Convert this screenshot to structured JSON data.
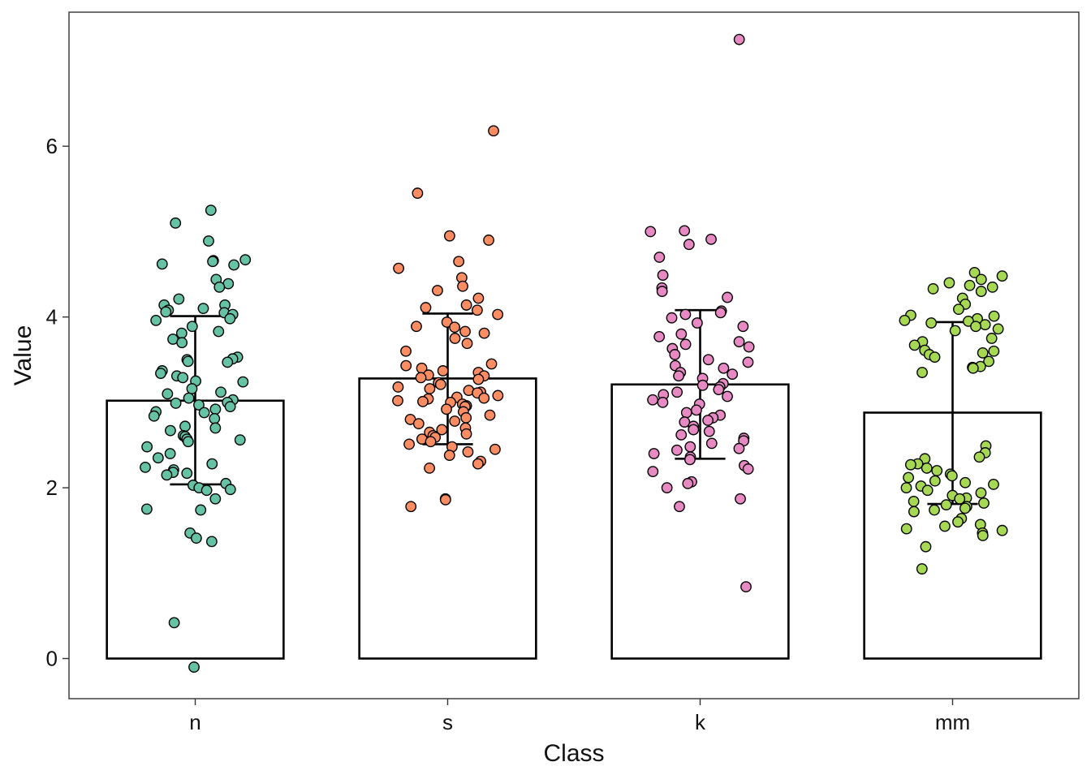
{
  "chart_data": {
    "type": "bar",
    "title": "",
    "xlabel": "Class",
    "ylabel": "Value",
    "categories": [
      "n",
      "s",
      "k",
      "mm"
    ],
    "values": [
      3.02,
      3.28,
      3.21,
      2.88
    ],
    "error_bars": [
      {
        "low": 2.04,
        "high": 4.01
      },
      {
        "low": 2.51,
        "high": 4.04
      },
      {
        "low": 2.34,
        "high": 4.08
      },
      {
        "low": 1.81,
        "high": 3.94
      }
    ],
    "ylim": [
      -0.47,
      7.57
    ],
    "yticks": [
      0,
      2,
      4,
      6
    ],
    "grid": false,
    "legend": "none",
    "bar_fill": "#ffffff",
    "bar_outline": "#000000",
    "point_colors": [
      "#66c2a5",
      "#fc8d62",
      "#e78ac3",
      "#a6d854"
    ],
    "points": [
      {
        "category": "n",
        "values": [
          5.25,
          5.1,
          4.89,
          4.67,
          4.66,
          4.65,
          4.62,
          4.61,
          4.44,
          4.39,
          4.35,
          4.21,
          4.14,
          4.14,
          4.1,
          4.08,
          4.06,
          4.05,
          4.03,
          3.98,
          3.96,
          3.89,
          3.83,
          3.81,
          3.74,
          3.7,
          3.53,
          3.51,
          3.5,
          3.48,
          3.47,
          3.37,
          3.34,
          3.31,
          3.29,
          3.25,
          3.24,
          3.16,
          3.12,
          3.1,
          3.05,
          3.03,
          3.0,
          2.99,
          2.97,
          2.95,
          2.92,
          2.89,
          2.88,
          2.84,
          2.81,
          2.72,
          2.7,
          2.67,
          2.61,
          2.6,
          2.57,
          2.56,
          2.54,
          2.48,
          2.4,
          2.35,
          2.28,
          2.24,
          2.21,
          2.18,
          2.17,
          2.15,
          2.05,
          2.03,
          2.0,
          1.98,
          1.97,
          1.87,
          1.75,
          1.74,
          1.47,
          1.41,
          1.37,
          0.42,
          -0.1
        ]
      },
      {
        "category": "s",
        "values": [
          6.18,
          5.45,
          4.95,
          4.9,
          4.65,
          4.57,
          4.46,
          4.36,
          4.31,
          4.22,
          4.14,
          4.11,
          4.08,
          4.03,
          3.94,
          3.89,
          3.88,
          3.83,
          3.81,
          3.75,
          3.69,
          3.6,
          3.45,
          3.43,
          3.4,
          3.37,
          3.35,
          3.32,
          3.31,
          3.29,
          3.27,
          3.23,
          3.21,
          3.18,
          3.16,
          3.14,
          3.12,
          3.11,
          3.08,
          3.06,
          3.05,
          3.04,
          3.02,
          3.01,
          3.0,
          2.98,
          2.96,
          2.95,
          2.92,
          2.89,
          2.85,
          2.82,
          2.8,
          2.78,
          2.75,
          2.7,
          2.68,
          2.65,
          2.63,
          2.61,
          2.59,
          2.57,
          2.54,
          2.51,
          2.48,
          2.45,
          2.42,
          2.38,
          2.31,
          2.28,
          2.23,
          1.87,
          1.86,
          1.78
        ]
      },
      {
        "category": "k",
        "values": [
          7.25,
          5.01,
          5.0,
          4.91,
          4.85,
          4.7,
          4.49,
          4.34,
          4.3,
          4.23,
          4.07,
          4.05,
          4.03,
          3.99,
          3.93,
          3.89,
          3.8,
          3.77,
          3.71,
          3.68,
          3.65,
          3.63,
          3.56,
          3.5,
          3.47,
          3.43,
          3.4,
          3.35,
          3.33,
          3.31,
          3.28,
          3.22,
          3.2,
          3.18,
          3.15,
          3.12,
          3.09,
          3.07,
          3.03,
          3.0,
          2.98,
          2.91,
          2.88,
          2.85,
          2.82,
          2.79,
          2.77,
          2.72,
          2.68,
          2.66,
          2.62,
          2.58,
          2.55,
          2.52,
          2.48,
          2.46,
          2.44,
          2.4,
          2.36,
          2.33,
          2.26,
          2.22,
          2.19,
          2.07,
          2.05,
          2.0,
          1.87,
          1.78,
          0.84
        ]
      },
      {
        "category": "mm",
        "values": [
          4.52,
          4.48,
          4.44,
          4.4,
          4.37,
          4.35,
          4.33,
          4.3,
          4.22,
          4.15,
          4.09,
          4.02,
          4.01,
          3.98,
          3.96,
          3.95,
          3.93,
          3.91,
          3.89,
          3.86,
          3.84,
          3.75,
          3.71,
          3.67,
          3.61,
          3.6,
          3.58,
          3.56,
          3.53,
          3.48,
          3.42,
          3.41,
          3.4,
          3.35,
          2.49,
          2.41,
          2.36,
          2.34,
          2.28,
          2.27,
          2.23,
          2.2,
          2.16,
          2.14,
          2.12,
          2.08,
          2.06,
          2.04,
          2.02,
          2.0,
          1.97,
          1.94,
          1.91,
          1.88,
          1.87,
          1.84,
          1.82,
          1.8,
          1.78,
          1.76,
          1.74,
          1.72,
          1.64,
          1.6,
          1.57,
          1.55,
          1.52,
          1.5,
          1.47,
          1.44,
          1.31,
          1.05
        ]
      }
    ]
  }
}
